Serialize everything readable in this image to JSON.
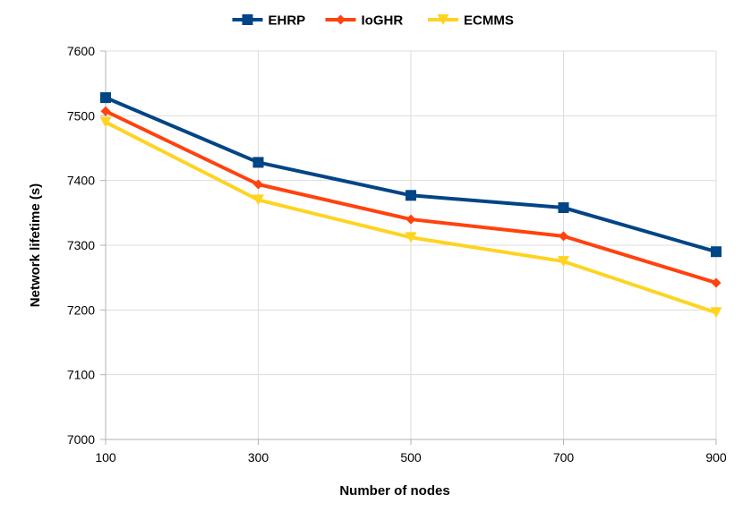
{
  "chart_data": {
    "type": "line",
    "title": "",
    "xlabel": "Number of nodes",
    "ylabel": "Network lifetime (s)",
    "x": [
      100,
      300,
      500,
      700,
      900
    ],
    "x_tick_labels": [
      "100",
      "300",
      "500",
      "700",
      "900"
    ],
    "ylim": [
      7000,
      7600
    ],
    "y_ticks": [
      7000,
      7100,
      7200,
      7300,
      7400,
      7500,
      7600
    ],
    "y_tick_labels": [
      "7000",
      "7100",
      "7200",
      "7300",
      "7400",
      "7500",
      "7600"
    ],
    "grid": true,
    "legend_position": "top-center",
    "series": [
      {
        "name": "EHRP",
        "color": "#004586",
        "marker": "square",
        "values": [
          7528,
          7428,
          7377,
          7358,
          7290
        ]
      },
      {
        "name": "IoGHR",
        "color": "#ff420e",
        "marker": "diamond",
        "values": [
          7507,
          7394,
          7340,
          7314,
          7242
        ]
      },
      {
        "name": "ECMMS",
        "color": "#ffd320",
        "marker": "triangle-down",
        "values": [
          7490,
          7370,
          7312,
          7275,
          7196
        ]
      }
    ]
  }
}
